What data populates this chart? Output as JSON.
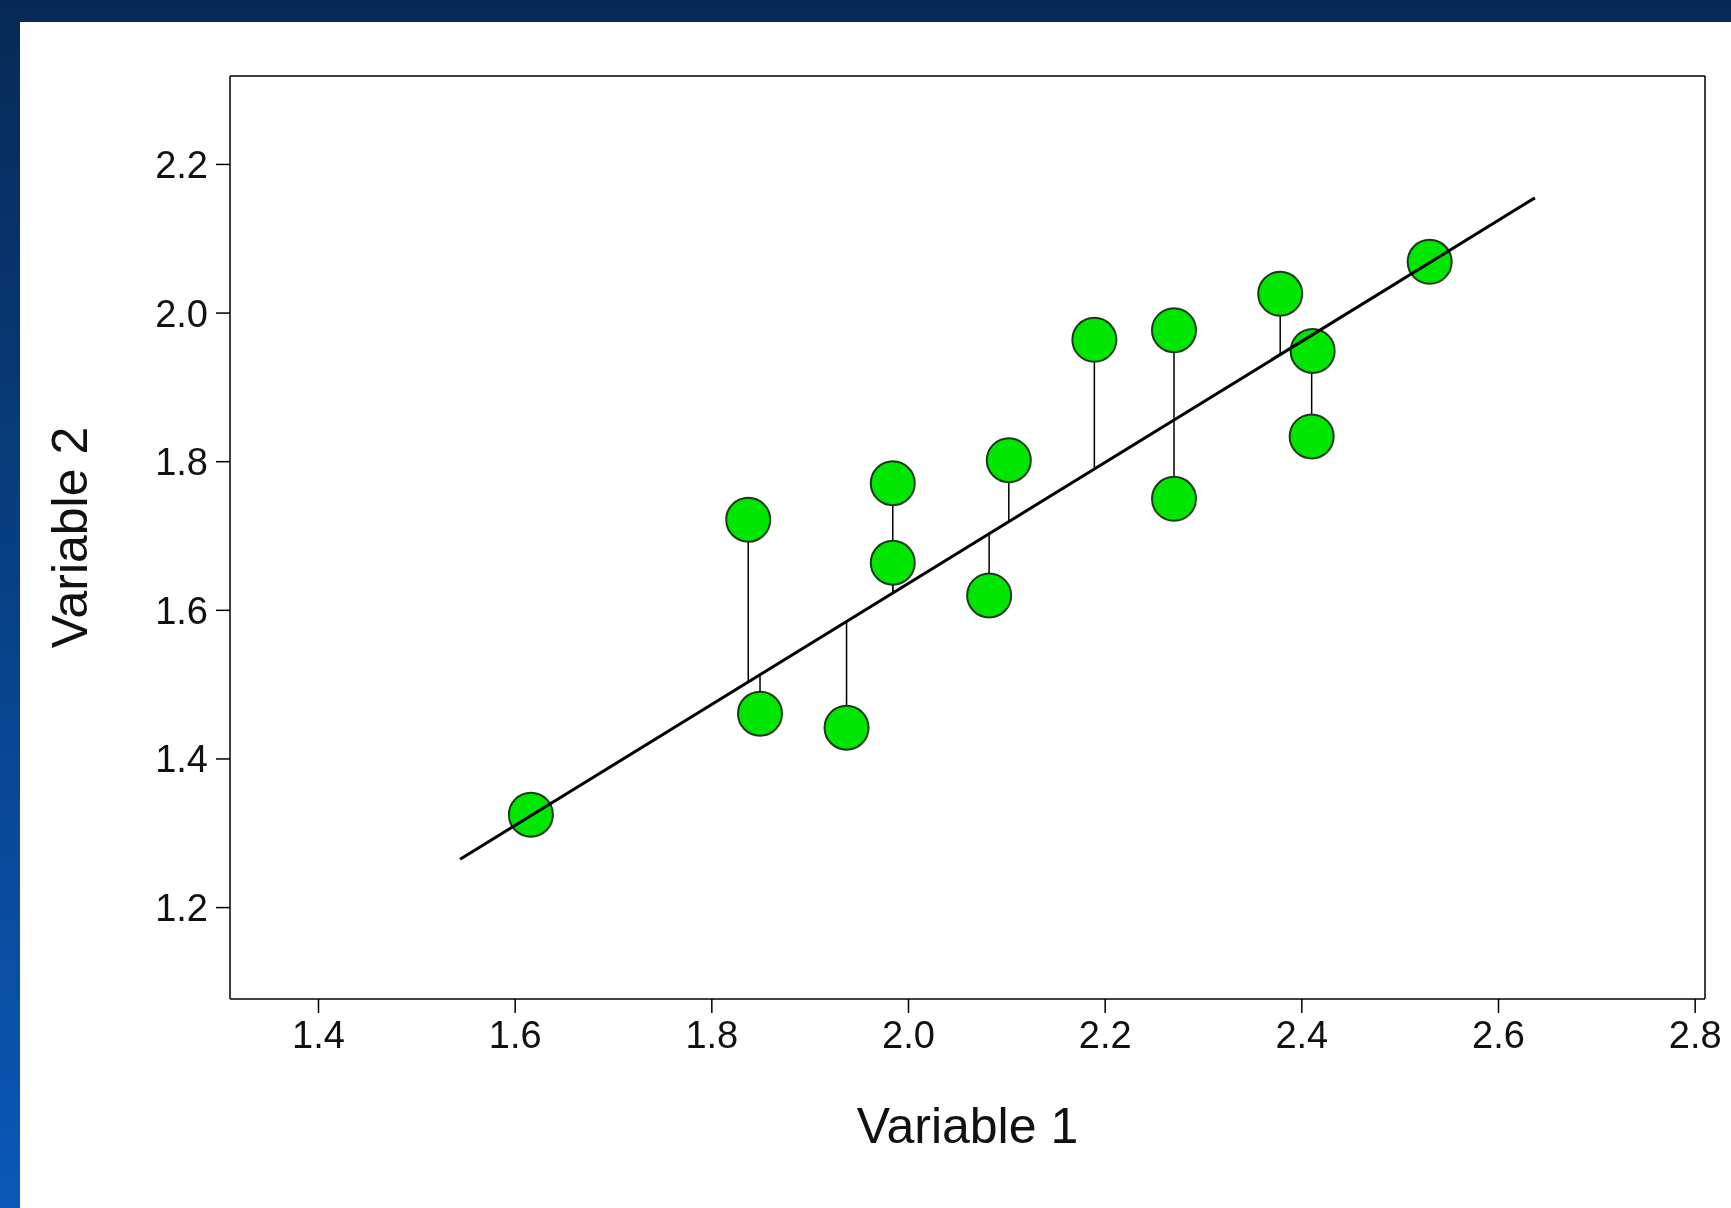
{
  "chart_data": {
    "type": "scatter",
    "xlabel": "Variable 1",
    "ylabel": "Variable 2",
    "xlim": [
      1.31,
      2.81
    ],
    "ylim": [
      1.077,
      2.319
    ],
    "xticks": [
      {
        "value": 1.4,
        "label": "1.4"
      },
      {
        "value": 1.6,
        "label": "1.6"
      },
      {
        "value": 1.8,
        "label": "1.8"
      },
      {
        "value": 2.0,
        "label": "2.0"
      },
      {
        "value": 2.2,
        "label": "2.2"
      },
      {
        "value": 2.4,
        "label": "2.4"
      },
      {
        "value": 2.6,
        "label": "2.6"
      },
      {
        "value": 2.8,
        "label": "2.8"
      }
    ],
    "yticks": [
      {
        "value": 1.2,
        "label": "1.2"
      },
      {
        "value": 1.4,
        "label": "1.4"
      },
      {
        "value": 1.6,
        "label": "1.6"
      },
      {
        "value": 1.8,
        "label": "1.8"
      },
      {
        "value": 2.0,
        "label": "2.0"
      },
      {
        "value": 2.2,
        "label": "2.2"
      }
    ],
    "grid": false,
    "legend": false,
    "series": [
      {
        "color": "#00e600",
        "marker": "circle",
        "x": [
          1.616,
          1.837,
          1.849,
          1.937,
          1.984,
          1.984,
          2.082,
          2.102,
          2.189,
          2.27,
          2.27,
          2.378,
          2.411,
          2.41,
          2.53
        ],
        "values": [
          1.325,
          1.722,
          1.461,
          1.442,
          1.771,
          1.664,
          1.62,
          1.802,
          1.964,
          1.977,
          1.75,
          2.026,
          1.949,
          1.834,
          2.069
        ],
        "errors": [
          null,
          [
            1.504,
            1.722
          ],
          [
            1.461,
            1.513
          ],
          [
            1.442,
            1.585
          ],
          [
            1.623,
            1.771
          ],
          [
            1.623,
            1.664
          ],
          [
            1.62,
            1.703
          ],
          [
            1.719,
            1.802
          ],
          [
            1.79,
            1.964
          ],
          [
            1.856,
            1.977
          ],
          [
            1.75,
            1.856
          ],
          [
            1.944,
            2.026
          ],
          [
            1.949,
            1.971
          ],
          [
            1.834,
            1.971
          ],
          null
        ]
      },
      {
        "type": "line",
        "color": "#000000",
        "marker": "none",
        "line_style": "solid",
        "x": [
          1.544,
          2.637
        ],
        "values": [
          1.265,
          2.155
        ]
      }
    ]
  }
}
